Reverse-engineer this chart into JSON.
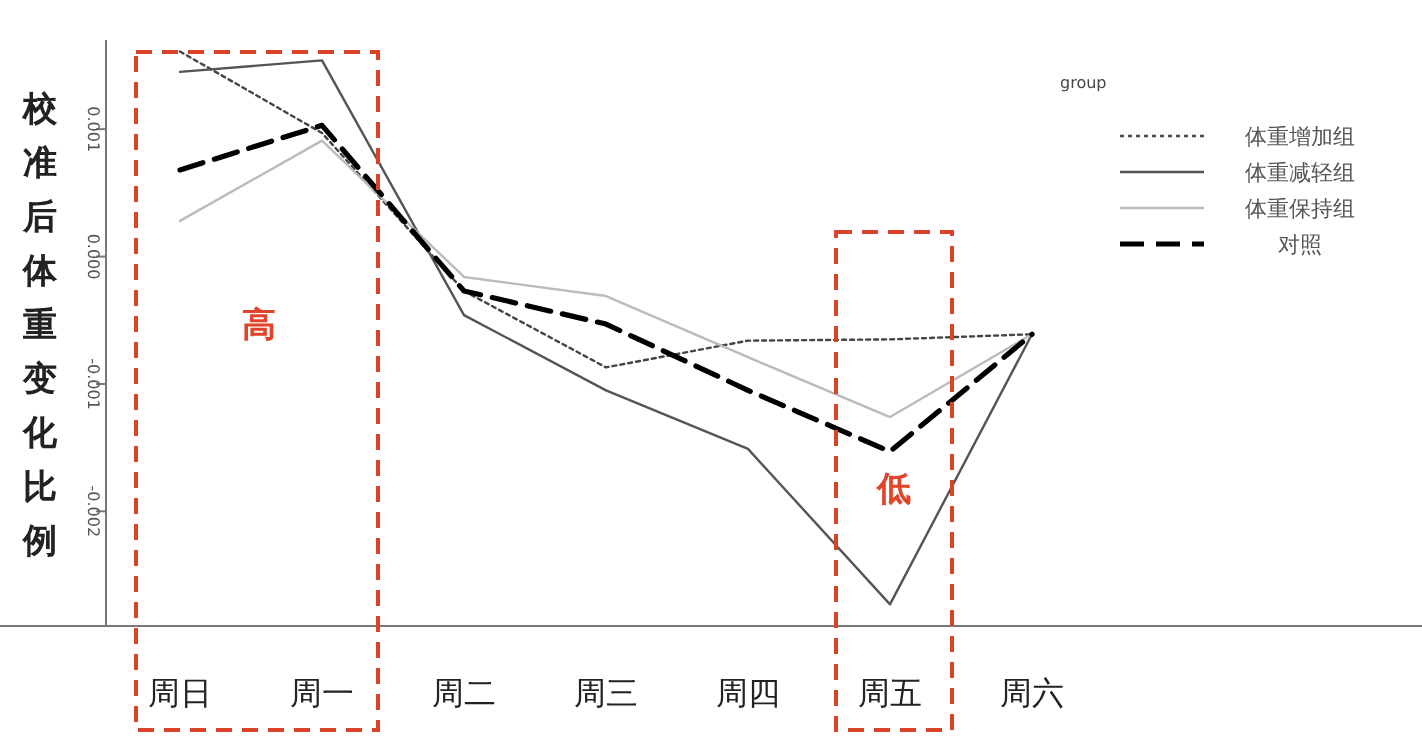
{
  "chart_data": {
    "type": "line",
    "ylabel": "校准后体重变化比例",
    "legend_title": "group",
    "legend": "top right",
    "grid": false,
    "categories": [
      "周日",
      "周一",
      "周二",
      "周三",
      "周四",
      "周五",
      "周六"
    ],
    "ylim": [
      -0.0029,
      0.0017
    ],
    "yticks": [
      {
        "value": 0.001,
        "label": "0.001"
      },
      {
        "value": 0,
        "label": "0.000"
      },
      {
        "value": -0.001,
        "label": "-0.001"
      },
      {
        "value": -0.002,
        "label": "-0.002"
      }
    ],
    "series": [
      {
        "name": "体重增加组",
        "color": "#444444",
        "line_style": "dotted",
        "values": [
          0.00161,
          0.00097,
          -0.00027,
          -0.00087,
          -0.00066,
          -0.00065,
          -0.00061
        ]
      },
      {
        "name": "体重减轻组",
        "color": "#555555",
        "line_style": "solid",
        "values": [
          0.00145,
          0.00154,
          -0.00046,
          -0.00105,
          -0.00151,
          -0.00273,
          -0.00061
        ]
      },
      {
        "name": "体重保持组",
        "color": "#bbbbbb",
        "line_style": "solid",
        "values": [
          0.00028,
          0.00091,
          -0.00016,
          -0.00031,
          -0.00079,
          -0.00126,
          -0.00061
        ]
      },
      {
        "name": "对照",
        "color": "#000000",
        "line_style": "dashed",
        "values": [
          0.00068,
          0.00103,
          -0.00027,
          -0.00053,
          -0.00105,
          -0.00153,
          -0.00061
        ]
      }
    ],
    "annotations": [
      "高",
      "低"
    ]
  }
}
